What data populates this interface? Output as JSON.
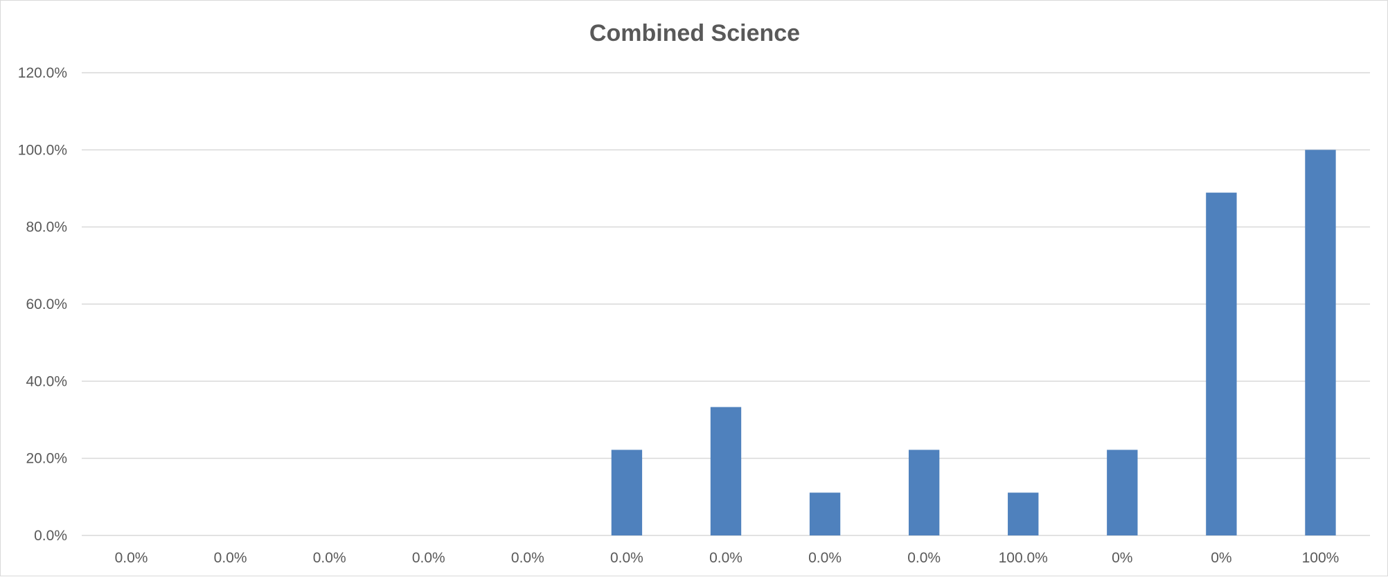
{
  "chart_data": {
    "type": "bar",
    "title": "Combined Science",
    "xlabel": "",
    "ylabel": "",
    "categories": [
      "0.0%",
      "0.0%",
      "0.0%",
      "0.0%",
      "0.0%",
      "0.0%",
      "0.0%",
      "0.0%",
      "0.0%",
      "100.0%",
      "0%",
      "0%",
      "100%"
    ],
    "values": [
      0,
      0,
      0,
      0,
      0,
      22.2,
      33.3,
      11.1,
      22.2,
      11.1,
      22.2,
      88.9,
      100
    ],
    "ylim": [
      0,
      120
    ],
    "yticks": [
      "0.0%",
      "20.0%",
      "40.0%",
      "60.0%",
      "80.0%",
      "100.0%",
      "120.0%"
    ],
    "grid": true,
    "legend": "none",
    "bar_color": "#4f81bd",
    "grid_color": "#d9d9d9"
  }
}
